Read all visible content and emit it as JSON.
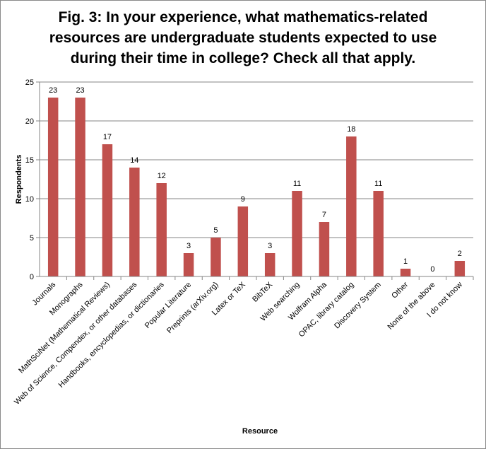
{
  "chart_data": {
    "type": "bar",
    "title_lines": [
      "Fig. 3: In your experience, what mathematics-related",
      "resources are undergraduate students expected to use",
      "during their time in college? Check all that apply."
    ],
    "xlabel": "Resource",
    "ylabel": "Respondents",
    "ylim": [
      0,
      25
    ],
    "yticks": [
      0,
      5,
      10,
      15,
      20,
      25
    ],
    "grid": true,
    "legend": "none",
    "bar_color": "#c0504d",
    "categories": [
      "Journals",
      "Monographs",
      "MathSciNet (Mathematical Reviews)",
      "Web of Science, Compendex, or other databases",
      "Handbooks, encyclopedias, or dictionaries",
      "Popular Literature",
      "Preprints (arXiv.org)",
      "Latex or TeX",
      "BibTeX",
      "Web searching",
      "Wolfram Alpha",
      "OPAC, library catalog",
      "Discovery System",
      "Other",
      "None of the above",
      "I do not know"
    ],
    "values": [
      23,
      23,
      17,
      14,
      12,
      3,
      5,
      9,
      3,
      11,
      7,
      18,
      11,
      1,
      0,
      2
    ]
  }
}
